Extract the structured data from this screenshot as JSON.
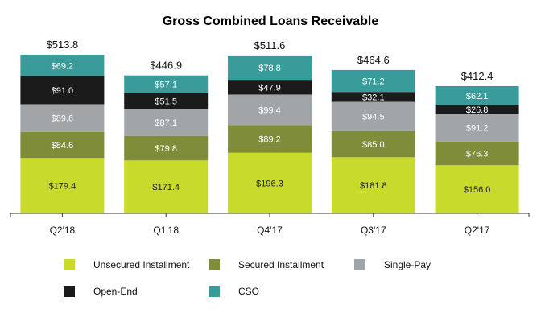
{
  "chart_data": {
    "type": "bar",
    "stacked": true,
    "title": "Gross Combined Loans Receivable",
    "categories": [
      "Q2'18",
      "Q1'18",
      "Q4'17",
      "Q3'17",
      "Q2'17"
    ],
    "totals": [
      "$513.8",
      "$446.9",
      "$511.6",
      "$464.6",
      "$412.4"
    ],
    "series": [
      {
        "name": "Unsecured Installment",
        "color": "#c8da2b",
        "label_color": "#222222",
        "values": [
          179.4,
          171.4,
          196.3,
          181.8,
          156.0
        ],
        "labels": [
          "$179.4",
          "$171.4",
          "$196.3",
          "$181.8",
          "$156.0"
        ]
      },
      {
        "name": "Secured Installment",
        "color": "#7f8c39",
        "label_color": "#ffffff",
        "values": [
          84.6,
          79.8,
          89.2,
          85.0,
          76.3
        ],
        "labels": [
          "$84.6",
          "$79.8",
          "$89.2",
          "$85.0",
          "$76.3"
        ]
      },
      {
        "name": "Single-Pay",
        "color": "#a2a5a8",
        "label_color": "#ffffff",
        "values": [
          89.6,
          87.1,
          99.4,
          94.5,
          91.2
        ],
        "labels": [
          "$89.6",
          "$87.1",
          "$99.4",
          "$94.5",
          "$91.2"
        ]
      },
      {
        "name": "Open-End",
        "color": "#1b1b1b",
        "label_color": "#ffffff",
        "values": [
          91.0,
          51.5,
          47.9,
          32.1,
          26.8
        ],
        "labels": [
          "$91.0",
          "$51.5",
          "$47.9",
          "$32.1",
          "$26.8"
        ]
      },
      {
        "name": "CSO",
        "color": "#3a9c9a",
        "label_color": "#ffffff",
        "values": [
          69.2,
          57.1,
          78.8,
          71.2,
          62.1
        ],
        "labels": [
          "$69.2",
          "$57.1",
          "$78.8",
          "$71.2",
          "$62.1"
        ]
      }
    ],
    "ylim": [
      0,
      540
    ],
    "grid": false,
    "legend_position": "bottom"
  }
}
